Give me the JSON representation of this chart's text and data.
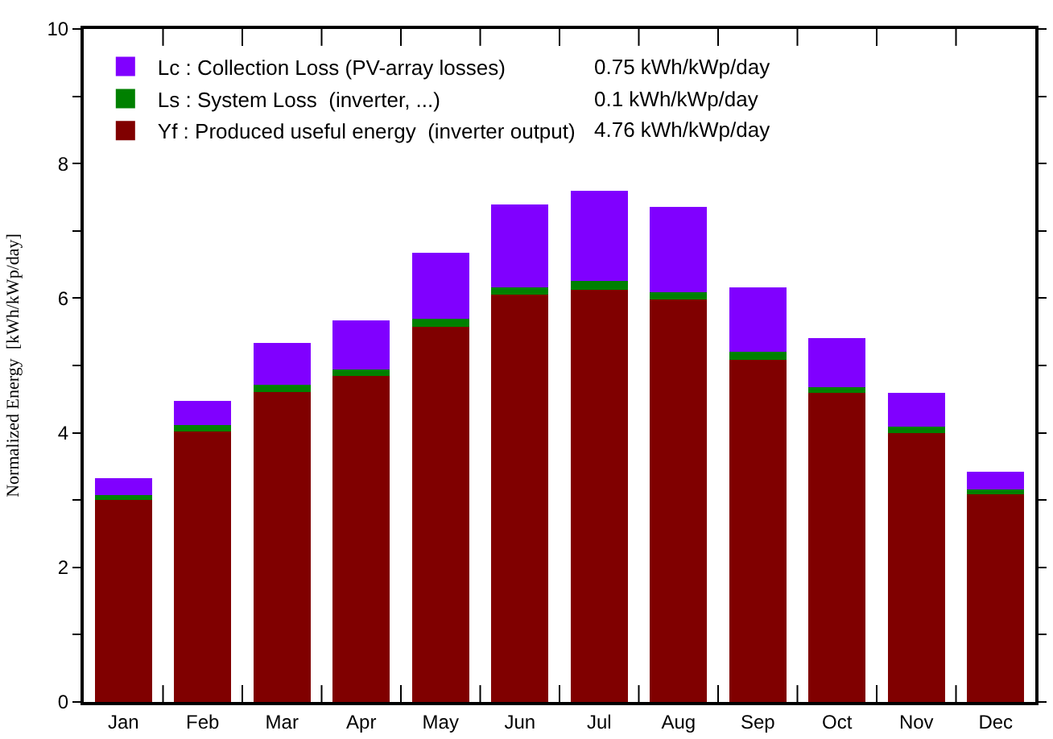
{
  "chart_data": {
    "type": "bar",
    "stacked": true,
    "ylabel": "Normalized Energy  [kWh/kWp/day]",
    "categories": [
      "Jan",
      "Feb",
      "Mar",
      "Apr",
      "May",
      "Jun",
      "Jul",
      "Aug",
      "Sep",
      "Oct",
      "Nov",
      "Dec"
    ],
    "series": [
      {
        "name": "Yf : Produced useful energy  (inverter output)",
        "color": "#800000",
        "values": [
          3.0,
          4.02,
          4.61,
          4.85,
          5.58,
          6.05,
          6.12,
          5.98,
          5.08,
          4.59,
          4.0,
          3.09
        ]
      },
      {
        "name": "Ls : System Loss  (inverter, ...)",
        "color": "#008000",
        "values": [
          0.07,
          0.1,
          0.1,
          0.09,
          0.11,
          0.11,
          0.14,
          0.11,
          0.12,
          0.09,
          0.09,
          0.07
        ]
      },
      {
        "name": "Lc : Collection Loss (PV-array losses)",
        "color": "#8000ff",
        "values": [
          0.25,
          0.35,
          0.63,
          0.73,
          0.99,
          1.23,
          1.34,
          1.27,
          0.96,
          0.73,
          0.5,
          0.26
        ]
      }
    ],
    "annotations": [
      "0.75 kWh/kWp/day",
      "0.1 kWh/kWp/day",
      "4.76 kWh/kWp/day"
    ],
    "ylim": [
      0,
      10
    ],
    "yticks": [
      0,
      {
        "value": 1,
        "label": null
      },
      2,
      {
        "value": 3,
        "label": null
      },
      4,
      {
        "value": 5,
        "label": null
      },
      6,
      {
        "value": 7,
        "label": null
      },
      8,
      {
        "value": 9,
        "label": null
      },
      10
    ],
    "legend": "top left"
  }
}
